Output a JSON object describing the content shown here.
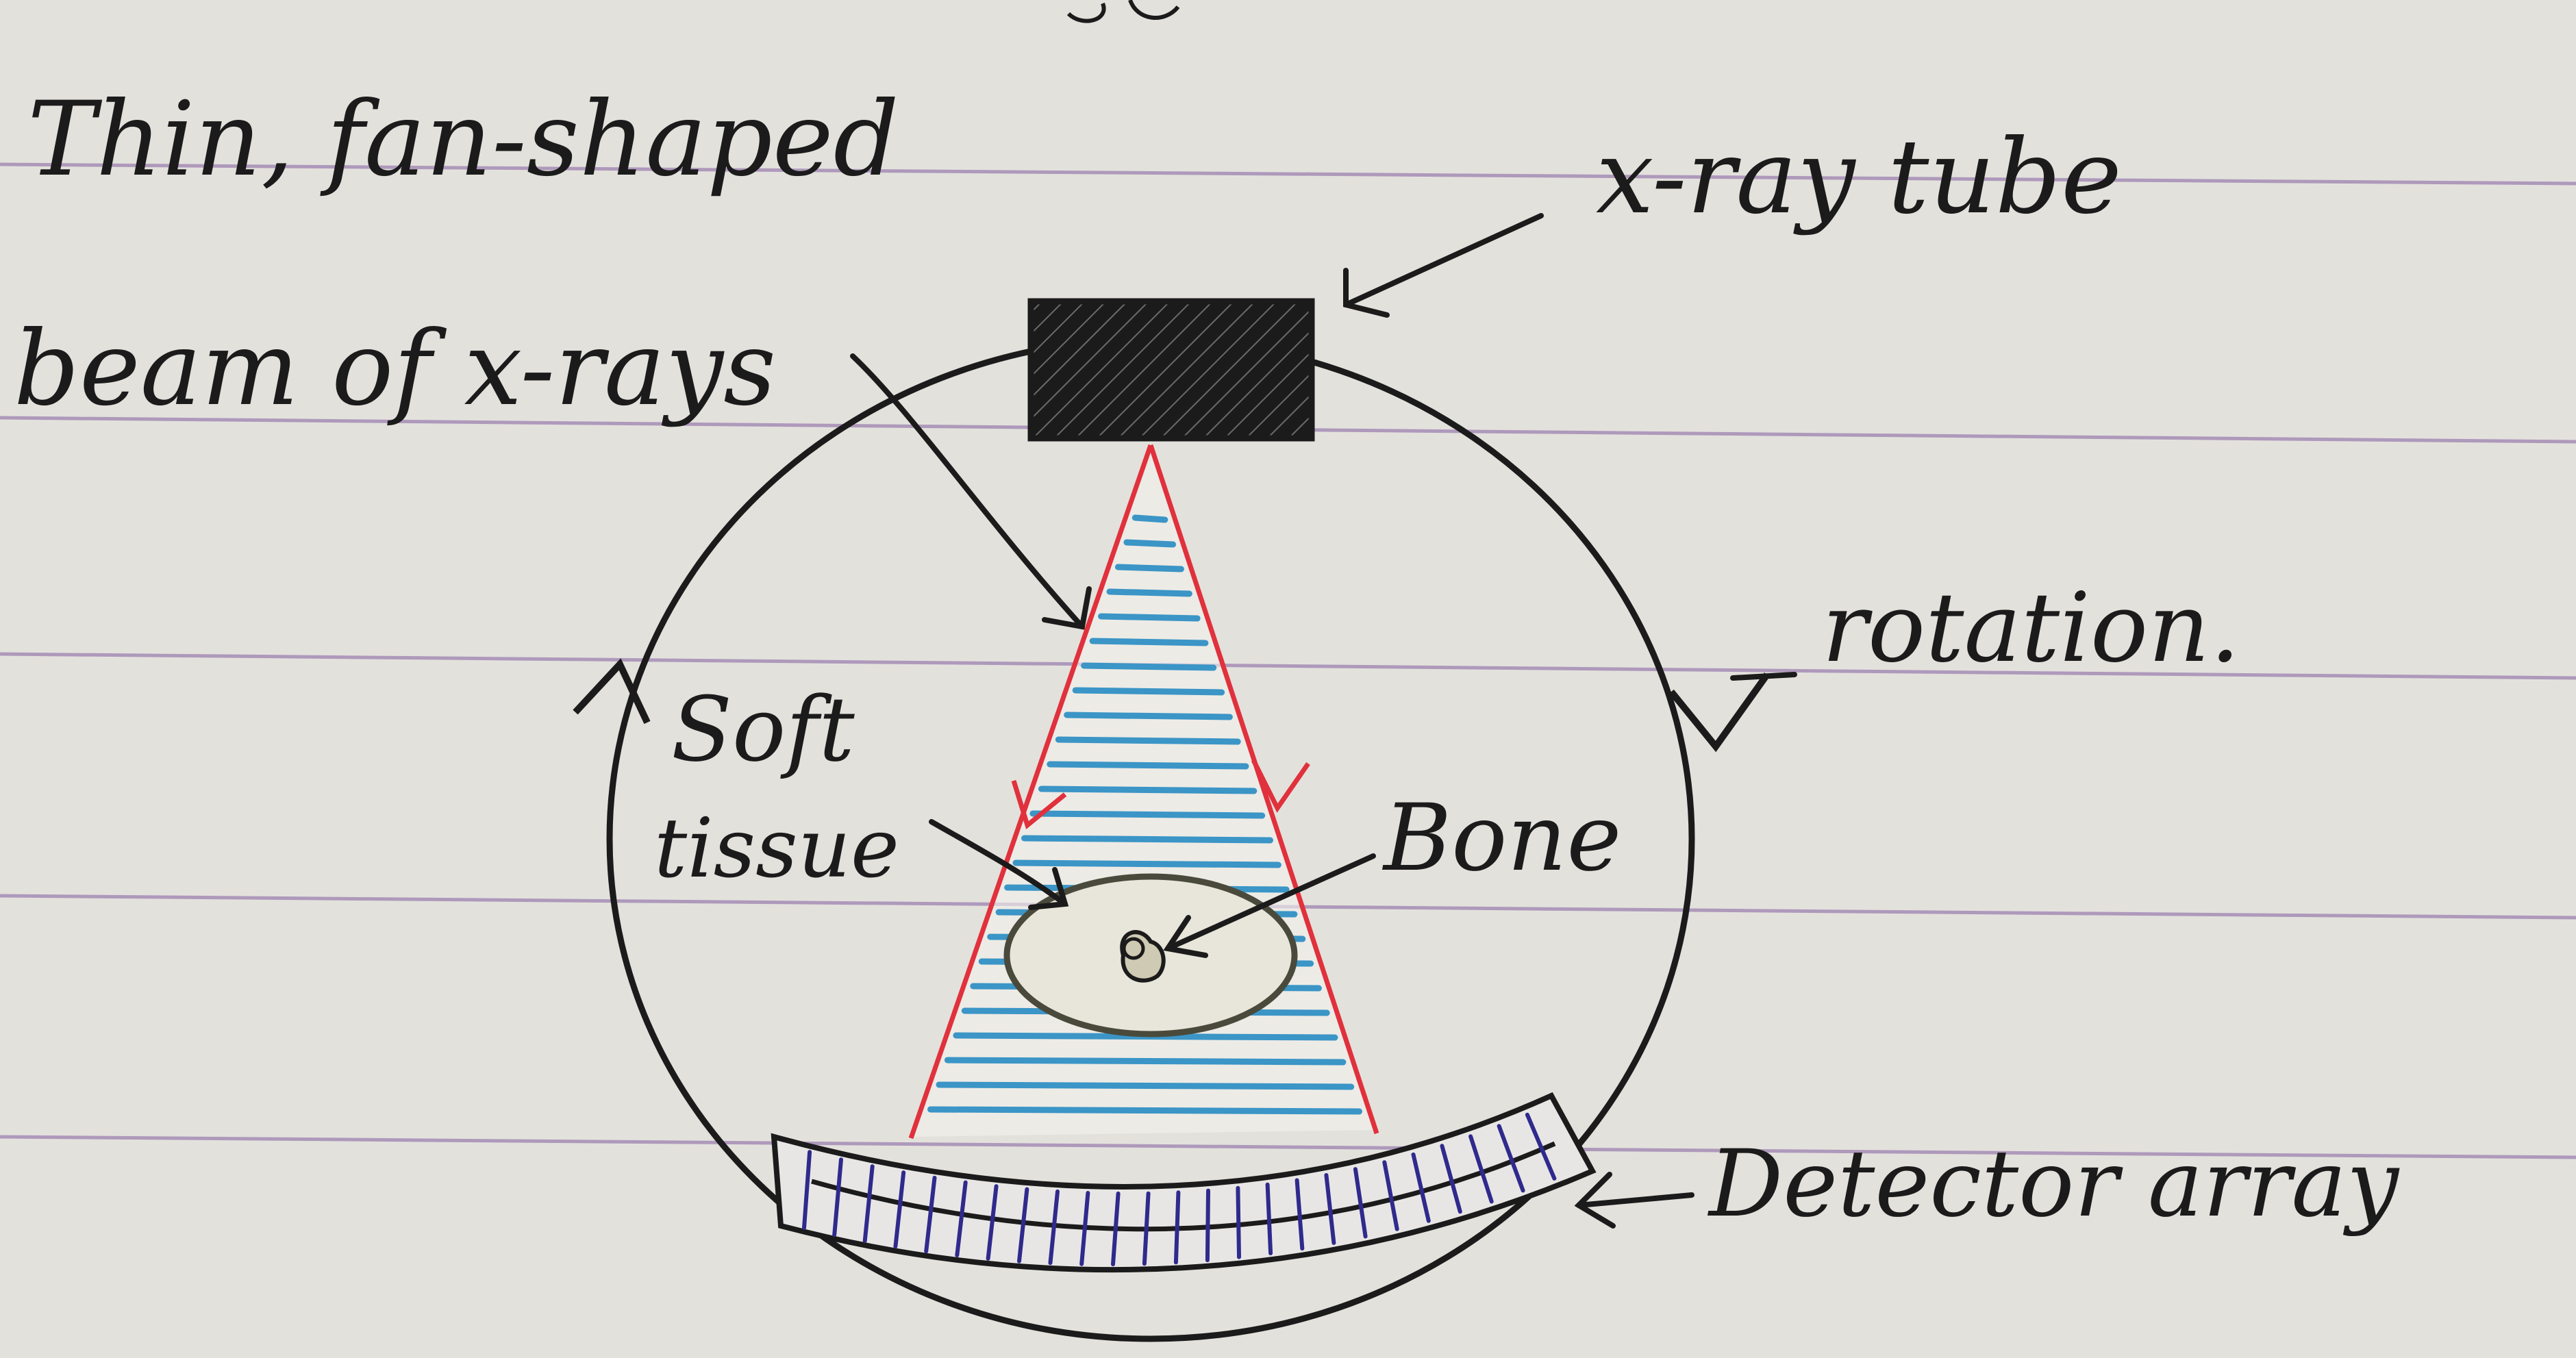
{
  "labels": {
    "thin_fan_line1": "Thin, fan-shaped",
    "thin_fan_line2": "beam of x-rays",
    "xray_tube": "x-ray tube",
    "rotation": "rotation.",
    "soft_line1": "Soft",
    "soft_line2": "tissue",
    "bone": "Bone",
    "detector_array": "Detector array"
  },
  "colors": {
    "paper": "#e3e1dc",
    "ruled_line": "#a58db6",
    "ink": "#1b1b1b",
    "beam_edge": "#e0313c",
    "beam_fill": "#3b95c6",
    "detector_ink": "#2f2a8c",
    "tissue_ring": "#4a4a3c"
  }
}
